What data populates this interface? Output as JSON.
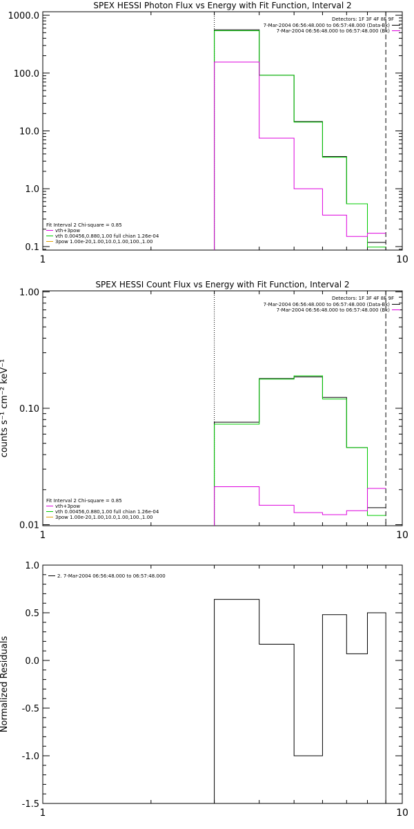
{
  "chart_data": [
    {
      "type": "line",
      "step": true,
      "title": "SPEX HESSI Photon Flux vs Energy with Fit Function, Interval 2",
      "xscale": "log",
      "yscale": "log",
      "xlim": [
        1,
        10
      ],
      "ylim": [
        0.087,
        1150
      ],
      "xticks": [
        {
          "v": 1,
          "label": "1"
        },
        {
          "v": 10,
          "label": "10"
        }
      ],
      "yticks": [
        {
          "v": 0.1,
          "label": "0.1"
        },
        {
          "v": 1,
          "label": "1.0"
        },
        {
          "v": 10,
          "label": "10.0"
        },
        {
          "v": 100,
          "label": "100.0"
        },
        {
          "v": 1000,
          "label": "1000.0"
        }
      ],
      "ylabel": "",
      "vlines": [
        {
          "x": 3.0,
          "style": "dotted"
        },
        {
          "x": 9.0,
          "style": "dashed"
        }
      ],
      "bin_edges": [
        3.0,
        4.0,
        5.0,
        6.0,
        7.0,
        8.0,
        9.0
      ],
      "series": [
        {
          "color": "#000000",
          "values": [
            560,
            92,
            14.5,
            3.6,
            0.55,
            0.118
          ]
        },
        {
          "color": "#00cc00",
          "values": [
            540,
            92,
            14.2,
            3.5,
            0.55,
            0.098
          ]
        },
        {
          "color": "#dd00dd",
          "values": [
            155,
            7.5,
            1.0,
            0.35,
            0.15,
            0.17
          ]
        }
      ],
      "legend_topright": {
        "detectors": "Detectors: 1F 3F 4F 8F 9F",
        "entries": [
          {
            "text": "7-Mar-2004 06:56:48.000 to 06:57:48.000 (Data-Bk)",
            "color": "#000000"
          },
          {
            "text": "7-Mar-2004 06:56:48.000 to 06:57:48.000 (Bk)",
            "color": "#dd00dd"
          }
        ]
      },
      "legend_bottomleft": {
        "heading": "Fit Interval 2   Chi-square = 0.85",
        "entries": [
          {
            "text": "vth+3pow",
            "color": "#dd00dd"
          },
          {
            "text": "vth 0.00456,0.880,1.00  full chian 1.26e-04",
            "color": "#00cc00"
          },
          {
            "text": "3pow 1.00e-20,1.00,10.0,1.00,100.,1.00",
            "color": "#e0a000"
          }
        ]
      }
    },
    {
      "type": "line",
      "step": true,
      "title": "SPEX HESSI Count Flux vs Energy with Fit Function, Interval 2",
      "xscale": "log",
      "yscale": "log",
      "xlim": [
        1,
        10
      ],
      "ylim": [
        0.0098,
        1.02
      ],
      "xticks": [
        {
          "v": 1,
          "label": "1"
        },
        {
          "v": 10,
          "label": "10"
        }
      ],
      "yticks": [
        {
          "v": 0.01,
          "label": "0.01"
        },
        {
          "v": 0.1,
          "label": "0.10"
        },
        {
          "v": 1,
          "label": "1.00"
        }
      ],
      "ylabel": "counts s⁻¹ cm⁻² keV⁻¹",
      "vlines": [
        {
          "x": 3.0,
          "style": "dotted"
        },
        {
          "x": 9.0,
          "style": "dashed"
        }
      ],
      "bin_edges": [
        3.0,
        4.0,
        5.0,
        6.0,
        7.0,
        8.0,
        9.0
      ],
      "series": [
        {
          "color": "#000000",
          "values": [
            0.076,
            0.18,
            0.186,
            0.124,
            0.046,
            0.014
          ]
        },
        {
          "color": "#00cc00",
          "values": [
            0.073,
            0.178,
            0.19,
            0.12,
            0.046,
            0.012
          ]
        },
        {
          "color": "#dd00dd",
          "values": [
            0.0212,
            0.0147,
            0.0127,
            0.0122,
            0.0132,
            0.0205
          ]
        }
      ],
      "legend_topright": {
        "detectors": "Detectors: 1F 3F 4F 8F 9F",
        "entries": [
          {
            "text": "7-Mar-2004 06:56:48.000 to 06:57:48.000 (Data-Bk)",
            "color": "#000000"
          },
          {
            "text": "7-Mar-2004 06:56:48.000 to 06:57:48.000 (Bk)",
            "color": "#dd00dd"
          }
        ]
      },
      "legend_bottomleft": {
        "heading": "Fit Interval 2   Chi-square = 0.85",
        "entries": [
          {
            "text": "vth+3pow",
            "color": "#dd00dd"
          },
          {
            "text": "vth 0.00456,0.880,1.00  full chian 1.26e-04",
            "color": "#00cc00"
          },
          {
            "text": "3pow 1.00e-20,1.00,10.0,1.00,100.,1.00",
            "color": "#e0a000"
          }
        ]
      }
    },
    {
      "type": "line",
      "step": true,
      "title": "",
      "xscale": "log",
      "yscale": "linear",
      "xlim": [
        1,
        10
      ],
      "ylim": [
        -1.5,
        1.0
      ],
      "xticks": [
        {
          "v": 1,
          "label": "1"
        },
        {
          "v": 10,
          "label": "10"
        }
      ],
      "yticks": [
        {
          "v": -1.5,
          "label": "-1.5"
        },
        {
          "v": -1.0,
          "label": "-1.0"
        },
        {
          "v": -0.5,
          "label": "-0.5"
        },
        {
          "v": 0.0,
          "label": "0.0"
        },
        {
          "v": 0.5,
          "label": "0.5"
        },
        {
          "v": 1.0,
          "label": "1.0"
        }
      ],
      "ylabel": "Normalized Residuals",
      "vlines": [],
      "bin_edges": [
        3.0,
        4.0,
        5.0,
        6.0,
        7.0,
        8.0,
        9.0
      ],
      "series": [
        {
          "color": "#000000",
          "values": [
            0.64,
            0.17,
            -1.0,
            0.48,
            0.07,
            0.5
          ]
        }
      ],
      "drop_to_bottom": true,
      "legend_topleft": {
        "entries": [
          {
            "text": "2.  7-Mar-2004 06:56:48.000 to 06:57:48.000",
            "color": "#000000"
          }
        ]
      }
    }
  ]
}
